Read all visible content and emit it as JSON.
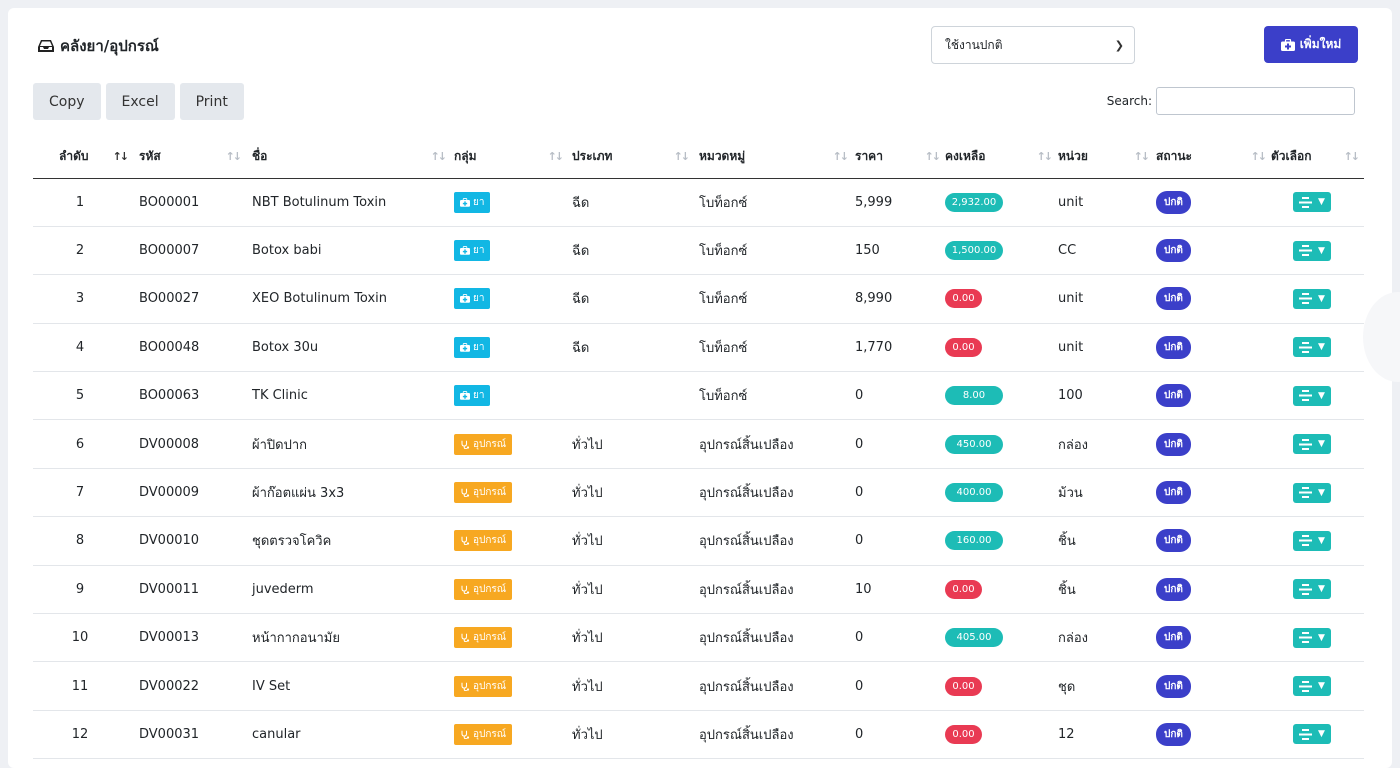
{
  "header": {
    "title": "คลังยา/อุปกรณ์",
    "status_filter": "ใช้งานปกติ",
    "add_label": "เพิ่มใหม่"
  },
  "toolbar": {
    "copy": "Copy",
    "excel": "Excel",
    "print": "Print",
    "search_label": "Search:"
  },
  "columns": [
    "ลำดับ",
    "รหัส",
    "ชื่อ",
    "กลุ่ม",
    "ประเภท",
    "หมวดหมู่",
    "ราคา",
    "คงเหลือ",
    "หน่วย",
    "สถานะ",
    "ตัวเลือก"
  ],
  "rows": [
    {
      "no": "1",
      "code": "BO00001",
      "name": "NBT Botulinum Toxin",
      "group": "ยา",
      "group_type": "drug",
      "type": "ฉีด",
      "category": "โบท็อกซ์",
      "price": "5,999",
      "stock": "2,932.00",
      "stock_type": "pos",
      "unit": "unit",
      "status": "ปกติ"
    },
    {
      "no": "2",
      "code": "BO00007",
      "name": "Botox babi",
      "group": "ยา",
      "group_type": "drug",
      "type": "ฉีด",
      "category": "โบท็อกซ์",
      "price": "150",
      "stock": "1,500.00",
      "stock_type": "pos",
      "unit": "CC",
      "status": "ปกติ"
    },
    {
      "no": "3",
      "code": "BO00027",
      "name": "XEO Botulinum Toxin",
      "group": "ยา",
      "group_type": "drug",
      "type": "ฉีด",
      "category": "โบท็อกซ์",
      "price": "8,990",
      "stock": "0.00",
      "stock_type": "zero",
      "unit": "unit",
      "status": "ปกติ"
    },
    {
      "no": "4",
      "code": "BO00048",
      "name": "Botox 30u",
      "group": "ยา",
      "group_type": "drug",
      "type": "ฉีด",
      "category": "โบท็อกซ์",
      "price": "1,770",
      "stock": "0.00",
      "stock_type": "zero",
      "unit": "unit",
      "status": "ปกติ"
    },
    {
      "no": "5",
      "code": "BO00063",
      "name": "TK Clinic",
      "group": "ยา",
      "group_type": "drug",
      "type": "",
      "category": "โบท็อกซ์",
      "price": "0",
      "stock": "8.00",
      "stock_type": "pos",
      "unit": "100",
      "status": "ปกติ"
    },
    {
      "no": "6",
      "code": "DV00008",
      "name": "ผ้าปิดปาก",
      "group": "อุปกรณ์",
      "group_type": "device",
      "type": "ทั่วไป",
      "category": "อุปกรณ์สิ้นเปลือง",
      "price": "0",
      "stock": "450.00",
      "stock_type": "pos",
      "unit": "กล่อง",
      "status": "ปกติ"
    },
    {
      "no": "7",
      "code": "DV00009",
      "name": "ผ้าก๊อตแผ่น 3x3",
      "group": "อุปกรณ์",
      "group_type": "device",
      "type": "ทั่วไป",
      "category": "อุปกรณ์สิ้นเปลือง",
      "price": "0",
      "stock": "400.00",
      "stock_type": "pos",
      "unit": "ม้วน",
      "status": "ปกติ"
    },
    {
      "no": "8",
      "code": "DV00010",
      "name": "ชุดตรวจโควิค",
      "group": "อุปกรณ์",
      "group_type": "device",
      "type": "ทั่วไป",
      "category": "อุปกรณ์สิ้นเปลือง",
      "price": "0",
      "stock": "160.00",
      "stock_type": "pos",
      "unit": "ชิ้น",
      "status": "ปกติ"
    },
    {
      "no": "9",
      "code": "DV00011",
      "name": "juvederm",
      "group": "อุปกรณ์",
      "group_type": "device",
      "type": "ทั่วไป",
      "category": "อุปกรณ์สิ้นเปลือง",
      "price": "10",
      "stock": "0.00",
      "stock_type": "zero",
      "unit": "ชิ้น",
      "status": "ปกติ"
    },
    {
      "no": "10",
      "code": "DV00013",
      "name": "หน้ากากอนามัย",
      "group": "อุปกรณ์",
      "group_type": "device",
      "type": "ทั่วไป",
      "category": "อุปกรณ์สิ้นเปลือง",
      "price": "0",
      "stock": "405.00",
      "stock_type": "pos",
      "unit": "กล่อง",
      "status": "ปกติ"
    },
    {
      "no": "11",
      "code": "DV00022",
      "name": "IV Set",
      "group": "อุปกรณ์",
      "group_type": "device",
      "type": "ทั่วไป",
      "category": "อุปกรณ์สิ้นเปลือง",
      "price": "0",
      "stock": "0.00",
      "stock_type": "zero",
      "unit": "ชุด",
      "status": "ปกติ"
    },
    {
      "no": "12",
      "code": "DV00031",
      "name": "canular",
      "group": "อุปกรณ์",
      "group_type": "device",
      "type": "ทั่วไป",
      "category": "อุปกรณ์สิ้นเปลือง",
      "price": "0",
      "stock": "0.00",
      "stock_type": "zero",
      "unit": "12",
      "status": "ปกติ"
    }
  ],
  "icons": {
    "title": "inbox-icon",
    "add": "medkit-icon",
    "drug": "medkit-icon",
    "device": "stethoscope-icon",
    "options": "bars-icon"
  },
  "colors": {
    "primary": "#3b3fc9",
    "teal": "#1dbcb6",
    "info": "#12b7e4",
    "warning": "#f7a821",
    "danger": "#e93a53"
  }
}
